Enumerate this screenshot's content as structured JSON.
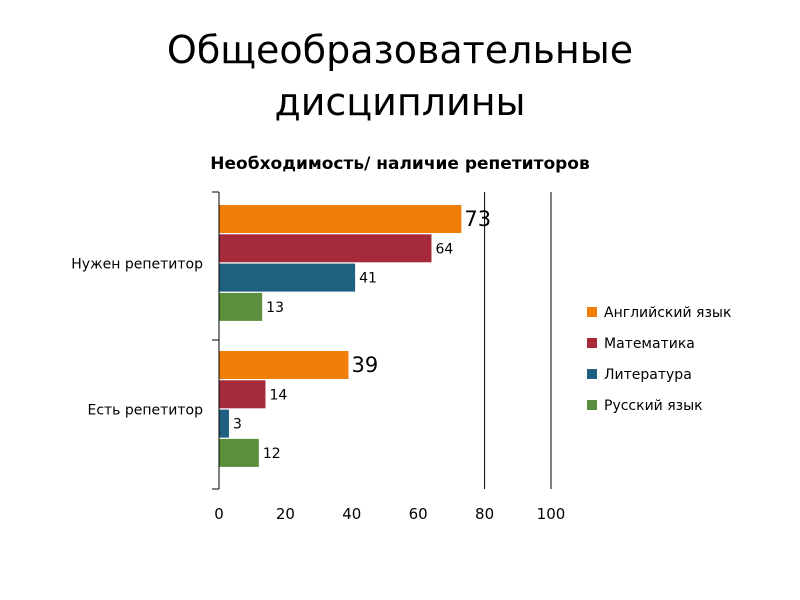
{
  "slide": {
    "title_line1": "Общеобразовательные",
    "title_line2": "дисциплины"
  },
  "chart_data": {
    "type": "bar",
    "orientation": "horizontal",
    "title": "Необходимость/ наличие репетиторов",
    "categories": [
      "Нужен репетитор",
      "Есть репетитор"
    ],
    "series": [
      {
        "name": "Английский язык",
        "color": "#F07F09",
        "values": [
          73,
          39
        ]
      },
      {
        "name": "Математика",
        "color": "#A52A3A",
        "values": [
          64,
          14
        ]
      },
      {
        "name": "Литература",
        "color": "#1F5F80",
        "values": [
          41,
          3
        ]
      },
      {
        "name": "Русский язык",
        "color": "#5A8F3E",
        "values": [
          13,
          12
        ]
      }
    ],
    "xlim": [
      0,
      100
    ],
    "xticks": [
      0,
      20,
      40,
      60,
      80,
      100
    ],
    "gridlines": [
      80,
      100
    ],
    "legend_position": "right",
    "xlabel": "",
    "ylabel": ""
  }
}
